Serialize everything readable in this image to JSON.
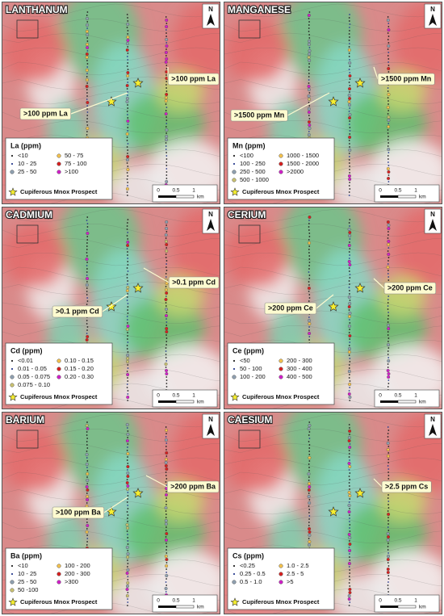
{
  "panels": [
    {
      "title": "LANTHANUM",
      "callouts": [
        ">100 ppm La",
        ">100 ppm La"
      ],
      "legend": {
        "title": "La (ppm)",
        "items": [
          {
            "label": "<10",
            "color": "#222222"
          },
          {
            "label": "10 - 25",
            "color": "#2b3f8f"
          },
          {
            "label": "25 - 50",
            "color": "#8fa0b0"
          },
          {
            "label": "50 - 75",
            "color": "#f2c14e"
          },
          {
            "label": "75 - 100",
            "color": "#d62020"
          },
          {
            "label": ">100",
            "color": "#d020c8"
          }
        ],
        "prospect": "Cupiferous Mnox Prospect"
      },
      "scale": {
        "labels": [
          "0",
          "0.5",
          "1"
        ],
        "unit": "km"
      },
      "north": "N"
    },
    {
      "title": "MANGANESE",
      "callouts": [
        ">1500 ppm Mn",
        ">1500 ppm Mn"
      ],
      "legend": {
        "title": "Mn (ppm)",
        "items": [
          {
            "label": "<100",
            "color": "#222222"
          },
          {
            "label": "100 - 250",
            "color": "#2b3f8f"
          },
          {
            "label": "250 - 500",
            "color": "#8fa0b0"
          },
          {
            "label": "500 - 1000",
            "color": "#c8c070"
          },
          {
            "label": "1000 - 1500",
            "color": "#f2c14e"
          },
          {
            "label": "1500 - 2000",
            "color": "#d62020"
          },
          {
            "label": ">2000",
            "color": "#d020c8"
          }
        ],
        "prospect": "Cupiferous Mnox Prospect"
      },
      "scale": {
        "labels": [
          "0",
          "0.5",
          "1"
        ],
        "unit": "km"
      },
      "north": "N"
    },
    {
      "title": "CADMIUM",
      "callouts": [
        ">0.1 ppm Cd",
        ">0.1 ppm Cd"
      ],
      "legend": {
        "title": "Cd (ppm)",
        "items": [
          {
            "label": "<0.01",
            "color": "#222222"
          },
          {
            "label": "0.01 - 0.05",
            "color": "#2b3f8f"
          },
          {
            "label": "0.05 - 0.075",
            "color": "#8fa0b0"
          },
          {
            "label": "0.075 - 0.10",
            "color": "#c8c070"
          },
          {
            "label": "0.10 - 0.15",
            "color": "#f2c14e"
          },
          {
            "label": "0.15 - 0.20",
            "color": "#d62020"
          },
          {
            "label": "0.20 - 0.30",
            "color": "#d020c8"
          }
        ],
        "prospect": "Cupiferous Mnox Prospect"
      },
      "scale": {
        "labels": [
          "0",
          "0.5",
          "1"
        ],
        "unit": "km"
      },
      "north": "N"
    },
    {
      "title": "CERIUM",
      "callouts": [
        ">200 ppm Ce",
        ">200 ppm Ce"
      ],
      "legend": {
        "title": "Ce (ppm)",
        "items": [
          {
            "label": "<50",
            "color": "#222222"
          },
          {
            "label": "50 - 100",
            "color": "#2b3f8f"
          },
          {
            "label": "100 - 200",
            "color": "#8fa0b0"
          },
          {
            "label": "200 - 300",
            "color": "#f2c14e"
          },
          {
            "label": "300 - 400",
            "color": "#d62020"
          },
          {
            "label": "400 - 500",
            "color": "#d020c8"
          }
        ],
        "prospect": "Cupiferous Mnox Prospect"
      },
      "scale": {
        "labels": [
          "0",
          "0.5",
          "1"
        ],
        "unit": "km"
      },
      "north": "N"
    },
    {
      "title": "BARIUM",
      "callouts": [
        ">200 ppm Ba",
        ">100 ppm Ba"
      ],
      "legend": {
        "title": "Ba (ppm)",
        "items": [
          {
            "label": "<10",
            "color": "#222222"
          },
          {
            "label": "10 - 25",
            "color": "#2b3f8f"
          },
          {
            "label": "25 - 50",
            "color": "#8fa0b0"
          },
          {
            "label": "50 -100",
            "color": "#c8c070"
          },
          {
            "label": "100 - 200",
            "color": "#f2c14e"
          },
          {
            "label": "200 - 300",
            "color": "#d62020"
          },
          {
            "label": ">300",
            "color": "#d020c8"
          }
        ],
        "prospect": "Cupiferous Mnox Prospect"
      },
      "scale": {
        "labels": [
          "0",
          "0.5",
          "1"
        ],
        "unit": "km"
      },
      "north": "N"
    },
    {
      "title": "CAESIUM",
      "callouts": [
        ">2.5 ppm Cs"
      ],
      "legend": {
        "title": "Cs (ppm)",
        "items": [
          {
            "label": "<0.25",
            "color": "#222222"
          },
          {
            "label": "0.25 - 0.5",
            "color": "#2b3f8f"
          },
          {
            "label": "0.5 - 1.0",
            "color": "#8fa0b0"
          },
          {
            "label": "1.0 - 2.5",
            "color": "#f2c14e"
          },
          {
            "label": "2.5 - 5",
            "color": "#d62020"
          },
          {
            "label": ">5",
            "color": "#d020c8"
          }
        ],
        "prospect": "Cupiferous Mnox Prospect"
      },
      "scale": {
        "labels": [
          "0",
          "0.5",
          "1"
        ],
        "unit": "km"
      },
      "north": "N"
    }
  ]
}
